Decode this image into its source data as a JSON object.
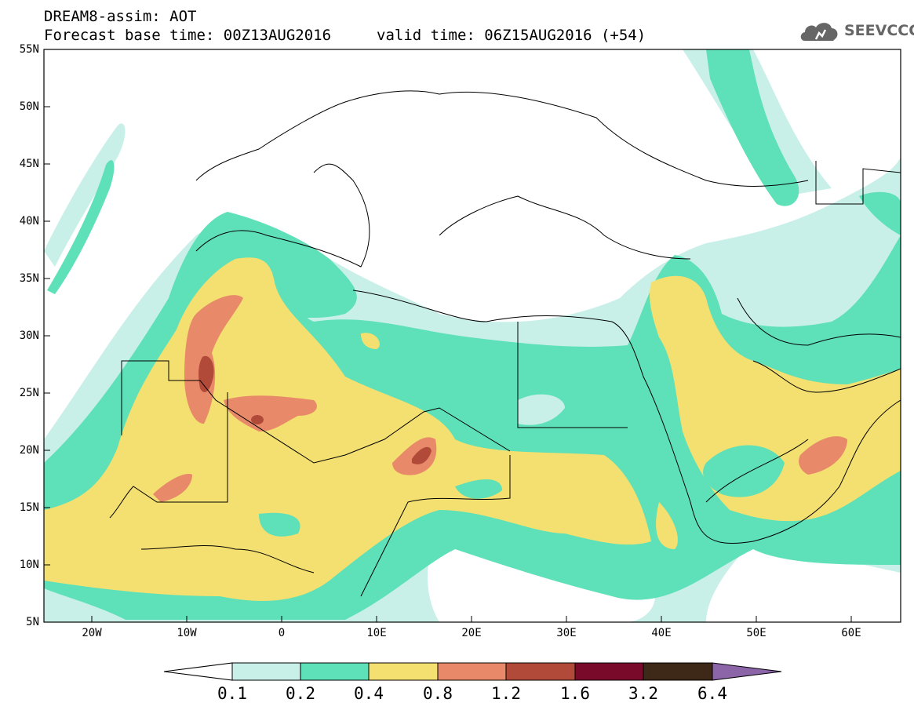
{
  "header": {
    "title": "DREAM8-assim: AOT",
    "base_time": "Forecast base time: 00Z13AUG2016",
    "valid_time": "valid time: 06Z15AUG2016 (+54)"
  },
  "logo": {
    "text": "SEEVCCC",
    "icon": "cloud-icon"
  },
  "map": {
    "lon_range": [
      -25,
      65
    ],
    "lat_range": [
      5,
      55
    ],
    "lat_labels": [
      "55N",
      "50N",
      "45N",
      "40N",
      "35N",
      "30N",
      "25N",
      "20N",
      "15N",
      "10N",
      "5N"
    ],
    "lon_labels": [
      "20W",
      "10W",
      "0",
      "10E",
      "20E",
      "30E",
      "40E",
      "50E",
      "60E"
    ]
  },
  "colorbar": {
    "levels": [
      "0.1",
      "0.2",
      "0.4",
      "0.8",
      "1.2",
      "1.6",
      "3.2",
      "6.4"
    ],
    "colors": [
      "#ffffff",
      "#c8f0e8",
      "#5ee0b8",
      "#f3e070",
      "#e88a6a",
      "#b24a3a",
      "#7a0a2a",
      "#3e2818",
      "#8c64a8"
    ]
  }
}
